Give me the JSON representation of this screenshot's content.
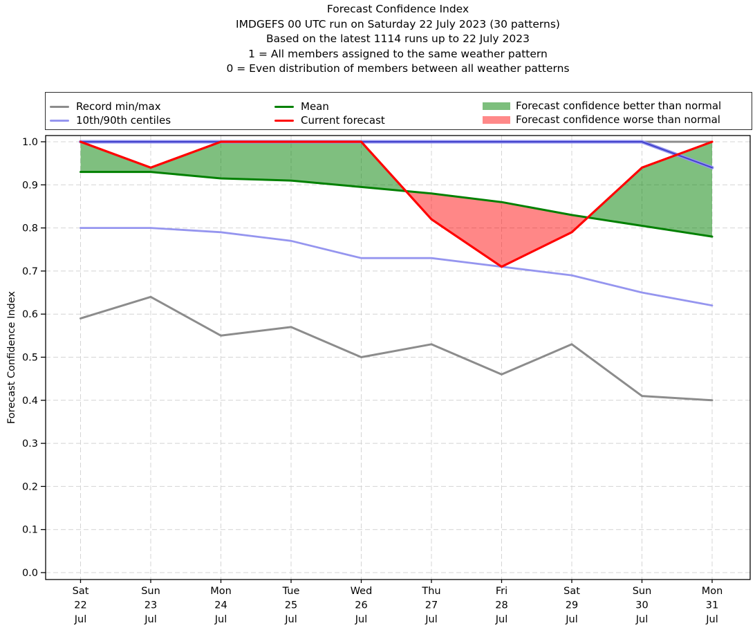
{
  "figure": {
    "title_lines": [
      "Forecast Confidence Index",
      "IMDGEFS 00 UTC run on Saturday 22 July 2023 (30 patterns)",
      "Based on the latest 1114 runs up to 22 July 2023",
      "1 = All members assigned to the same weather pattern",
      "0 = Even distribution of members between all weather patterns"
    ]
  },
  "legend": {
    "entries": [
      {
        "label": "Record min/max",
        "type": "line",
        "color": "#8c8c8c"
      },
      {
        "label": "10th/90th centiles",
        "type": "line",
        "color": "#9595ef"
      },
      {
        "label": "Mean",
        "type": "line",
        "color": "#008000"
      },
      {
        "label": "Current forecast",
        "type": "line",
        "color": "#ff0000"
      },
      {
        "label": "Forecast confidence better than normal",
        "type": "patch",
        "color": "#7dbf7d"
      },
      {
        "label": "Forecast confidence worse than normal",
        "type": "patch",
        "color": "#ff8989"
      }
    ]
  },
  "chart_data": {
    "type": "line",
    "title": "Forecast Confidence Index",
    "ylabel": "Forecast Confidence Index",
    "ylim": [
      0.0,
      1.0
    ],
    "yticks": [
      0.0,
      0.1,
      0.2,
      0.3,
      0.4,
      0.5,
      0.6,
      0.7,
      0.8,
      0.9,
      1.0
    ],
    "grid": true,
    "legend_position": "top",
    "x_tick_lines": [
      [
        "Sat",
        "22",
        "Jul"
      ],
      [
        "Sun",
        "23",
        "Jul"
      ],
      [
        "Mon",
        "24",
        "Jul"
      ],
      [
        "Tue",
        "25",
        "Jul"
      ],
      [
        "Wed",
        "26",
        "Jul"
      ],
      [
        "Thu",
        "27",
        "Jul"
      ],
      [
        "Fri",
        "28",
        "Jul"
      ],
      [
        "Sat",
        "29",
        "Jul"
      ],
      [
        "Sun",
        "30",
        "Jul"
      ],
      [
        "Mon",
        "31",
        "Jul"
      ]
    ],
    "x_categories": [
      "Sat 22 Jul",
      "Sun 23 Jul",
      "Mon 24 Jul",
      "Tue 25 Jul",
      "Wed 26 Jul",
      "Thu 27 Jul",
      "Fri 28 Jul",
      "Sat 29 Jul",
      "Sun 30 Jul",
      "Mon 31 Jul"
    ],
    "series": [
      {
        "name": "Record max",
        "legend": "Record min/max",
        "color": "#8c8c8c",
        "width": 3,
        "values": [
          1.0,
          1.0,
          1.0,
          1.0,
          1.0,
          1.0,
          1.0,
          1.0,
          1.0,
          1.0
        ]
      },
      {
        "name": "Record min",
        "legend": "Record min/max",
        "color": "#8c8c8c",
        "width": 3,
        "values": [
          0.59,
          0.64,
          0.55,
          0.57,
          0.5,
          0.53,
          0.46,
          0.53,
          0.41,
          0.4
        ]
      },
      {
        "name": "10th centile",
        "legend": "10th/90th centiles",
        "color": "#9595ef",
        "width": 2.8,
        "values": [
          0.8,
          0.8,
          0.79,
          0.77,
          0.73,
          0.73,
          0.71,
          0.69,
          0.65,
          0.62
        ]
      },
      {
        "name": "90th centile",
        "legend": "10th/90th centiles",
        "color": "#9595ef",
        "width": 5,
        "overlay_color": "#4343cb",
        "overlay_width": 2,
        "values": [
          1.0,
          1.0,
          1.0,
          1.0,
          1.0,
          1.0,
          1.0,
          1.0,
          1.0,
          0.94
        ]
      },
      {
        "name": "Mean",
        "legend": "Mean",
        "color": "#008000",
        "width": 3,
        "values": [
          0.93,
          0.93,
          0.915,
          0.91,
          0.895,
          0.88,
          0.86,
          0.83,
          0.805,
          0.78
        ]
      },
      {
        "name": "Current forecast",
        "legend": "Current forecast",
        "color": "#ff0000",
        "width": 3.2,
        "values": [
          1.0,
          0.94,
          1.0,
          1.0,
          1.0,
          0.82,
          0.71,
          0.79,
          0.94,
          1.0
        ]
      }
    ],
    "fills": {
      "between": [
        "Current forecast",
        "Mean"
      ],
      "better_color": "rgba(0,128,0,0.5)",
      "worse_color": "rgba(255,0,0,0.47)",
      "better_label": "Forecast confidence better than normal",
      "worse_label": "Forecast confidence worse than normal"
    }
  }
}
